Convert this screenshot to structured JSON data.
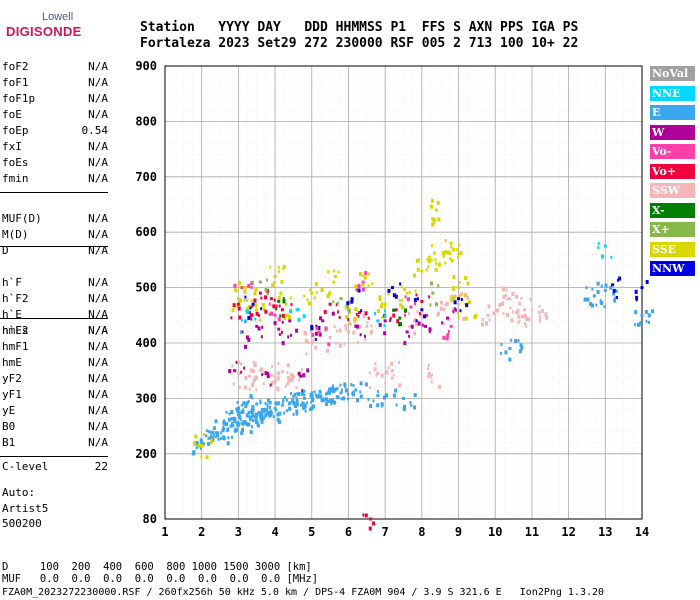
{
  "logo": {
    "top": "Lowell",
    "main": "DIGISONDE"
  },
  "header": {
    "row1": "Station   YYYY DAY   DDD HHMMSS P1  FFS S AXN PPS IGA PS",
    "row2": "Fortaleza 2023 Set29 272 230000 RSF 005 2 713 100 10+ 22"
  },
  "params_group1": [
    {
      "name": "foF2",
      "value": "N/A"
    },
    {
      "name": "foF1",
      "value": "N/A"
    },
    {
      "name": "foF1p",
      "value": "N/A"
    },
    {
      "name": "foE",
      "value": "N/A"
    },
    {
      "name": "foEp",
      "value": "0.54"
    },
    {
      "name": "fxI",
      "value": "N/A"
    },
    {
      "name": "foEs",
      "value": "N/A"
    },
    {
      "name": "fmin",
      "value": "N/A"
    }
  ],
  "params_group2": [
    {
      "name": "MUF(D)",
      "value": "N/A"
    },
    {
      "name": "M(D)",
      "value": "N/A"
    },
    {
      "name": "D",
      "value": "N/A"
    }
  ],
  "params_group3": [
    {
      "name": "h`F",
      "value": "N/A"
    },
    {
      "name": "h`F2",
      "value": "N/A"
    },
    {
      "name": "h`E",
      "value": "N/A"
    },
    {
      "name": "h`Es",
      "value": "N/A"
    }
  ],
  "params_group4": [
    {
      "name": "hmF2",
      "value": "N/A"
    },
    {
      "name": "hmF1",
      "value": "N/A"
    },
    {
      "name": "hmE",
      "value": "N/A"
    },
    {
      "name": "yF2",
      "value": "N/A"
    },
    {
      "name": "yF1",
      "value": "N/A"
    },
    {
      "name": "yE",
      "value": "N/A"
    },
    {
      "name": "B0",
      "value": "N/A"
    },
    {
      "name": "B1",
      "value": "N/A"
    }
  ],
  "clevel": {
    "name": "C-level",
    "value": "22"
  },
  "auto": {
    "line1": "Auto:",
    "line2": "Artist5",
    "line3": "500200"
  },
  "legend": [
    {
      "label": "NoVal",
      "color": "#a0a0a0"
    },
    {
      "label": "NNE",
      "color": "#00d8ff"
    },
    {
      "label": "E",
      "color": "#3aa6ee"
    },
    {
      "label": "W",
      "color": "#b0009a"
    },
    {
      "label": "Vo-",
      "color": "#ff40a8"
    },
    {
      "label": "Vo+",
      "color": "#f0003c"
    },
    {
      "label": "SSW",
      "color": "#f4b6b6"
    },
    {
      "label": "X-",
      "color": "#008000"
    },
    {
      "label": "X+",
      "color": "#88b84c"
    },
    {
      "label": "SSE",
      "color": "#d8d800"
    },
    {
      "label": "NNW",
      "color": "#0000e0"
    }
  ],
  "bottom": {
    "d_line": "D     100  200  400  600  800 1000 1500 3000 [km]",
    "muf_line": "MUF   0.0  0.0  0.0  0.0  0.0  0.0  0.0  0.0 [MHz]",
    "file_line": "FZA0M_2023272230000.RSF / 260fx256h 50 kHz 5.0 km / DPS-4 FZA0M 904 / 3.9 S 321.6 E   Ion2Png 1.3.20"
  },
  "chart_data": {
    "type": "scatter",
    "xlabel": "",
    "ylabel": "",
    "x_ticks": [
      1,
      2,
      3,
      4,
      5,
      6,
      7,
      8,
      9,
      10,
      11,
      12,
      13,
      14
    ],
    "y_ticks": [
      80,
      200,
      300,
      400,
      500,
      600,
      700,
      800,
      900
    ],
    "xlim": [
      1,
      14
    ],
    "ylim": [
      80,
      900
    ],
    "grid": true,
    "legend_position": "right",
    "series": [
      {
        "name": "E",
        "color": "#3aa6ee",
        "points": [
          [
            2.0,
            220
          ],
          [
            2.2,
            228
          ],
          [
            2.4,
            238
          ],
          [
            2.6,
            245
          ],
          [
            2.8,
            250
          ],
          [
            2.9,
            262
          ],
          [
            3.0,
            270
          ],
          [
            3.1,
            255
          ],
          [
            3.2,
            285
          ],
          [
            3.3,
            275
          ],
          [
            3.4,
            260
          ],
          [
            3.5,
            290
          ],
          [
            3.6,
            268
          ],
          [
            3.7,
            280
          ],
          [
            3.8,
            272
          ],
          [
            4.0,
            282
          ],
          [
            4.2,
            288
          ],
          [
            4.4,
            292
          ],
          [
            4.6,
            296
          ],
          [
            4.8,
            300
          ],
          [
            5.0,
            302
          ],
          [
            5.2,
            304
          ],
          [
            5.4,
            308
          ],
          [
            5.6,
            312
          ],
          [
            5.8,
            310
          ],
          [
            6.2,
            315
          ],
          [
            6.8,
            305
          ],
          [
            7.5,
            300
          ],
          [
            10.4,
            390
          ],
          [
            12.7,
            485
          ],
          [
            13.0,
            495
          ],
          [
            14.0,
            450
          ]
        ]
      },
      {
        "name": "SSW",
        "color": "#f4b6b6",
        "points": [
          [
            3.0,
            345
          ],
          [
            3.3,
            340
          ],
          [
            3.6,
            350
          ],
          [
            3.9,
            342
          ],
          [
            4.2,
            348
          ],
          [
            4.5,
            340
          ],
          [
            5.0,
            400
          ],
          [
            5.5,
            410
          ],
          [
            6.0,
            420
          ],
          [
            6.5,
            430
          ],
          [
            6.8,
            345
          ],
          [
            7.2,
            350
          ],
          [
            7.8,
            440
          ],
          [
            8.2,
            345
          ],
          [
            8.6,
            460
          ],
          [
            9.0,
            470
          ],
          [
            10.2,
            470
          ],
          [
            10.4,
            480
          ],
          [
            10.6,
            455
          ],
          [
            10.8,
            460
          ],
          [
            9.8,
            450
          ],
          [
            11.2,
            455
          ]
        ]
      },
      {
        "name": "SSE",
        "color": "#d8d800",
        "points": [
          [
            2.0,
            215
          ],
          [
            3.0,
            480
          ],
          [
            3.2,
            500
          ],
          [
            3.5,
            460
          ],
          [
            4.0,
            520
          ],
          [
            4.3,
            470
          ],
          [
            5.0,
            490
          ],
          [
            5.6,
            510
          ],
          [
            6.0,
            460
          ],
          [
            6.4,
            505
          ],
          [
            7.0,
            470
          ],
          [
            7.6,
            490
          ],
          [
            8.0,
            530
          ],
          [
            8.2,
            555
          ],
          [
            8.4,
            640
          ],
          [
            8.6,
            560
          ],
          [
            8.8,
            580
          ],
          [
            9.0,
            500
          ],
          [
            9.2,
            470
          ]
        ]
      },
      {
        "name": "W",
        "color": "#b0009a",
        "points": [
          [
            2.9,
            350
          ],
          [
            3.1,
            420
          ],
          [
            3.5,
            430
          ],
          [
            3.8,
            345
          ],
          [
            4.1,
            425
          ],
          [
            4.4,
            440
          ],
          [
            4.7,
            340
          ],
          [
            5.3,
            440
          ],
          [
            6.2,
            430
          ],
          [
            7.0,
            440
          ],
          [
            7.6,
            420
          ],
          [
            8.1,
            430
          ],
          [
            8.7,
            445
          ]
        ]
      },
      {
        "name": "Vo+",
        "color": "#f0003c",
        "points": [
          [
            3.0,
            470
          ],
          [
            3.3,
            455
          ],
          [
            3.6,
            490
          ],
          [
            3.9,
            480
          ],
          [
            4.2,
            460
          ],
          [
            5.5,
            470
          ],
          [
            6.3,
            455
          ],
          [
            6.6,
            80
          ],
          [
            7.3,
            460
          ],
          [
            8.0,
            475
          ]
        ]
      },
      {
        "name": "NNW",
        "color": "#0000e0",
        "points": [
          [
            3.4,
            470
          ],
          [
            5.0,
            430
          ],
          [
            6.1,
            480
          ],
          [
            7.2,
            500
          ],
          [
            8.0,
            460
          ],
          [
            9.0,
            480
          ],
          [
            13.2,
            505
          ],
          [
            14.0,
            500
          ]
        ]
      },
      {
        "name": "NNE",
        "color": "#00d8ff",
        "points": [
          [
            3.2,
            440
          ],
          [
            4.6,
            460
          ],
          [
            6.8,
            440
          ],
          [
            13.0,
            575
          ]
        ]
      },
      {
        "name": "Vo-",
        "color": "#ff40a8",
        "points": [
          [
            3.1,
            500
          ],
          [
            4.0,
            450
          ],
          [
            5.2,
            420
          ],
          [
            6.4,
            510
          ],
          [
            7.7,
            465
          ],
          [
            8.8,
            430
          ]
        ]
      },
      {
        "name": "X+",
        "color": "#88b84c",
        "points": [
          [
            3.6,
            510
          ],
          [
            5.8,
            480
          ],
          [
            8.3,
            490
          ]
        ]
      },
      {
        "name": "X-",
        "color": "#008000",
        "points": [
          [
            4.1,
            475
          ],
          [
            7.4,
            445
          ]
        ]
      }
    ]
  }
}
